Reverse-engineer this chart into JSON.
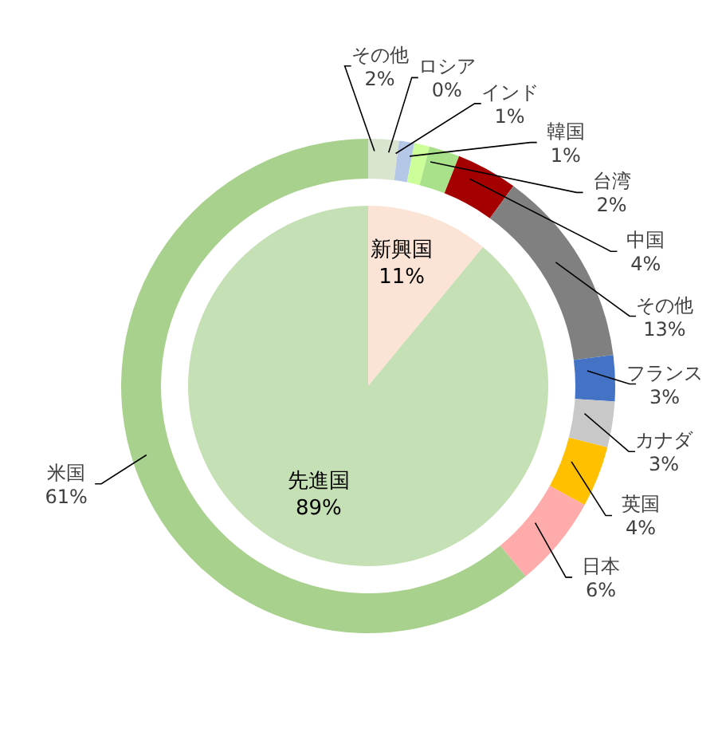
{
  "chart_data": [
    {
      "type": "pie",
      "categories": [
        "新興国",
        "先進国"
      ],
      "values": [
        11,
        89
      ],
      "value_labels": [
        "11%",
        "89%"
      ],
      "colors": [
        "#fbe3d6",
        "#c5e0b4"
      ]
    },
    {
      "type": "donut",
      "categories": [
        "その他",
        "ロシア",
        "インド",
        "韓国",
        "台湾",
        "中国",
        "その他",
        "フランス",
        "カナダ",
        "英国",
        "日本",
        "米国"
      ],
      "values": [
        2,
        0,
        1,
        1,
        2,
        4,
        13,
        3,
        3,
        4,
        6,
        61
      ],
      "value_labels": [
        "2%",
        "0%",
        "1%",
        "1%",
        "2%",
        "4%",
        "13%",
        "3%",
        "3%",
        "4%",
        "6%",
        "61%"
      ],
      "colors": [
        "#d9e5cf",
        "#7030a0",
        "#b4c7e7",
        "#ccff99",
        "#a9e08a",
        "#a50000",
        "#808080",
        "#4472c4",
        "#c8c8c8",
        "#ffc000",
        "#ffabab",
        "#a9d18e"
      ]
    }
  ]
}
